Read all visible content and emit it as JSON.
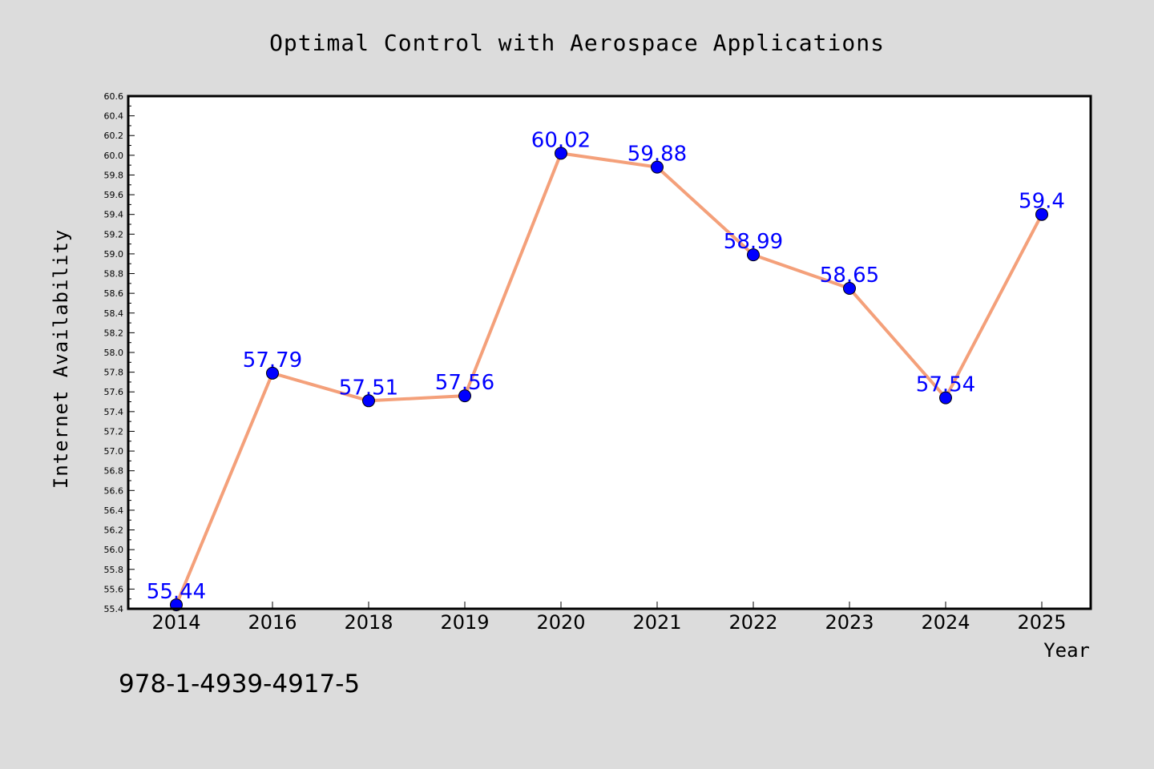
{
  "chart_data": {
    "type": "line",
    "title": "Optimal Control with Aerospace Applications",
    "xlabel": "Year",
    "ylabel": "Internet Availability",
    "categories": [
      "2014",
      "2016",
      "2018",
      "2019",
      "2020",
      "2021",
      "2022",
      "2023",
      "2024",
      "2025"
    ],
    "series": [
      {
        "values": [
          55.44,
          57.79,
          57.51,
          57.56,
          60.02,
          59.88,
          58.99,
          58.65,
          57.54,
          59.4
        ],
        "labels": [
          "55.44",
          "57.79",
          "57.51",
          "57.56",
          "60.02",
          "59.88",
          "58.99",
          "58.65",
          "57.54",
          "59.4"
        ],
        "line_color": "#f4a07a",
        "marker_color": "#0000ff"
      }
    ],
    "ylim": [
      55.4,
      60.6
    ],
    "yticks": [
      "55.4",
      "55.6",
      "55.8",
      "56.0",
      "56.2",
      "56.4",
      "56.6",
      "56.8",
      "57.0",
      "57.2",
      "57.4",
      "57.6",
      "57.8",
      "58.0",
      "58.2",
      "58.4",
      "58.6",
      "58.8",
      "59.0",
      "59.2",
      "59.4",
      "59.6",
      "59.8",
      "60.0",
      "60.2",
      "60.4",
      "60.6"
    ],
    "grid": false,
    "legend": "none"
  },
  "footer": {
    "isbn": "978-1-4939-4917-5"
  },
  "colors": {
    "background": "#dcdcdc",
    "plot_area": "#ffffff",
    "line": "#f4a07a",
    "marker": "#0000ff",
    "data_label": "#0000ff"
  }
}
